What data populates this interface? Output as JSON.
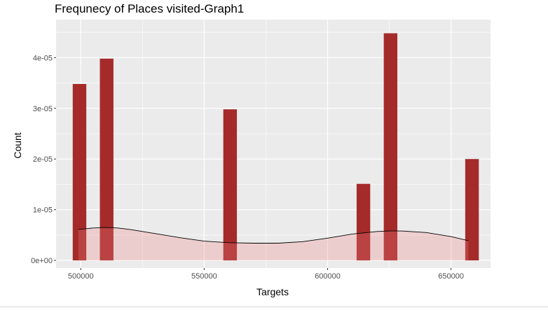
{
  "chart_data": {
    "type": "bar",
    "title": "Frequnecy of Places visited-Graph1",
    "xlabel": "Targets",
    "ylabel": "Count",
    "xlim": [
      490000,
      666000
    ],
    "ylim": [
      -1.5e-06,
      4.75e-05
    ],
    "x_ticks": [
      {
        "value": 500000,
        "label": "500000"
      },
      {
        "value": 550000,
        "label": "550000"
      },
      {
        "value": 600000,
        "label": "600000"
      },
      {
        "value": 650000,
        "label": "650000"
      }
    ],
    "y_ticks": [
      {
        "value": 0,
        "label": "0e+00"
      },
      {
        "value": 1e-05,
        "label": "1e-05"
      },
      {
        "value": 2e-05,
        "label": "2e-05"
      },
      {
        "value": 3e-05,
        "label": "3e-05"
      },
      {
        "value": 4e-05,
        "label": "4e-05"
      }
    ],
    "bin_width": 5500,
    "bars": [
      {
        "x": 499500,
        "value": 3.48e-05
      },
      {
        "x": 510500,
        "value": 3.98e-05
      },
      {
        "x": 560500,
        "value": 2.98e-05
      },
      {
        "x": 614500,
        "value": 1.51e-05
      },
      {
        "x": 625500,
        "value": 4.48e-05
      },
      {
        "x": 658500,
        "value": 2e-05
      }
    ],
    "density": {
      "x": [
        499000,
        505000,
        510000,
        515000,
        520000,
        530000,
        540000,
        550000,
        560000,
        570000,
        580000,
        590000,
        600000,
        610000,
        620000,
        625000,
        630000,
        640000,
        650000,
        657000
      ],
      "y": [
        6.1e-06,
        6.4e-06,
        6.5e-06,
        6.4e-06,
        6.1e-06,
        5.3e-06,
        4.5e-06,
        3.8e-06,
        3.5e-06,
        3.4e-06,
        3.4e-06,
        3.7e-06,
        4.4e-06,
        5.2e-06,
        5.7e-06,
        5.8e-06,
        5.8e-06,
        5.5e-06,
        4.7e-06,
        3.9e-06
      ]
    },
    "grid": true,
    "colors": {
      "bar_fill": "#a52a2a",
      "density_fill": "#f08080",
      "density_line": "#000000",
      "panel": "#ebebeb",
      "grid": "#ffffff"
    }
  }
}
